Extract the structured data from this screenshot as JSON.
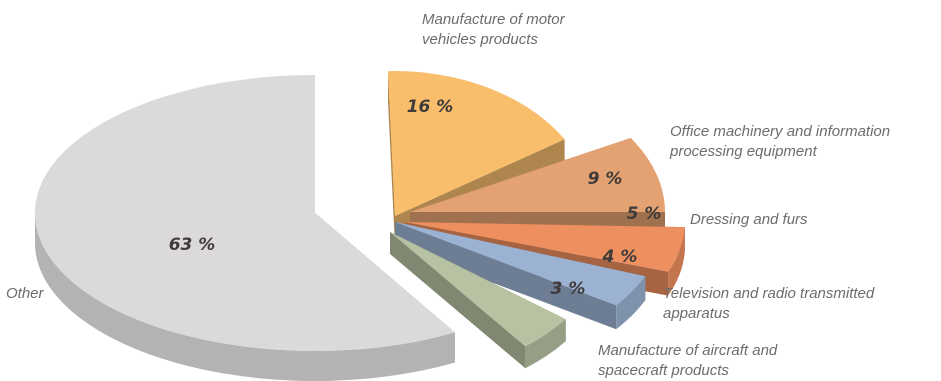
{
  "chart_data": {
    "type": "pie",
    "style": "3d-exploded",
    "title": "",
    "legend": "none",
    "slices": [
      {
        "label": "Manufacture of motor vehicles products",
        "label_lines": [
          "Manufacture of motor",
          "vehicles products"
        ],
        "value": 16,
        "value_label": "16 %",
        "color": "#f8be6c"
      },
      {
        "label": "Office machinery and information processing equipment",
        "label_lines": [
          "Office machinery and information",
          "processing equipment"
        ],
        "value": 9,
        "value_label": "9 %",
        "color": "#e4a171"
      },
      {
        "label": "Dressing and furs",
        "label_lines": [
          "Dressing and furs"
        ],
        "value": 5,
        "value_label": "5 %",
        "color": "#ee8f5f"
      },
      {
        "label": "Television and radio transmitted apparatus",
        "label_lines": [
          "Television and radio transmitted",
          "apparatus"
        ],
        "value": 4,
        "value_label": "4 %",
        "color": "#9bb2d2"
      },
      {
        "label": "Manufacture of aircraft and spacecraft products",
        "label_lines": [
          "Manufacture of aircraft and",
          "spacecraft products"
        ],
        "value": 3,
        "value_label": "3 %",
        "color": "#b7c2a2"
      },
      {
        "label": "Other",
        "label_lines": [
          "Other"
        ],
        "value": 63,
        "value_label": "63 %",
        "color": "#dcd9dc"
      }
    ]
  }
}
